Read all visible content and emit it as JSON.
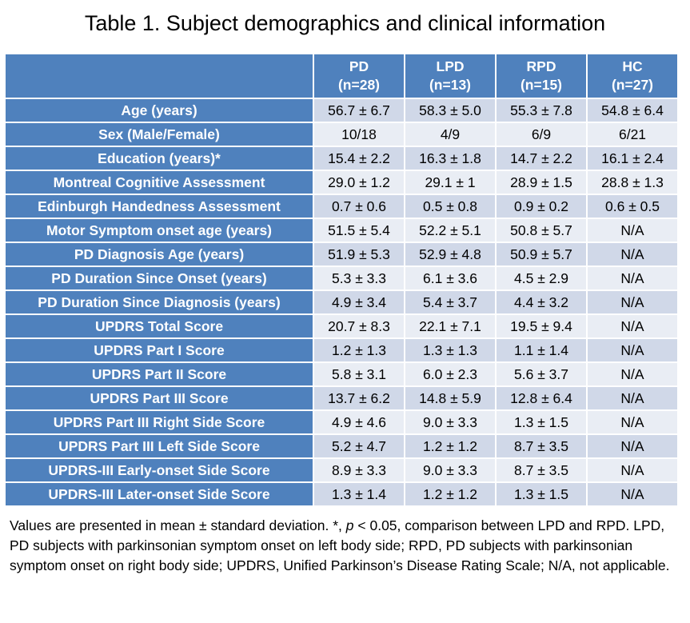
{
  "title": "Table 1. Subject demographics and clinical information",
  "table": {
    "headers": [
      {
        "name": "PD",
        "n": "(n=28)"
      },
      {
        "name": "LPD",
        "n": "(n=13)"
      },
      {
        "name": "RPD",
        "n": "(n=15)"
      },
      {
        "name": "HC",
        "n": "(n=27)"
      }
    ],
    "rows": [
      {
        "label": "Age (years)",
        "values": [
          "56.7 ± 6.7",
          "58.3 ± 5.0",
          "55.3 ± 7.8",
          "54.8 ± 6.4"
        ]
      },
      {
        "label": "Sex (Male/Female)",
        "values": [
          "10/18",
          "4/9",
          "6/9",
          "6/21"
        ]
      },
      {
        "label": "Education (years)*",
        "values": [
          "15.4 ± 2.2",
          "16.3 ± 1.8",
          "14.7 ± 2.2",
          "16.1 ± 2.4"
        ]
      },
      {
        "label": "Montreal Cognitive Assessment",
        "values": [
          "29.0 ± 1.2",
          "29.1 ± 1",
          "28.9 ± 1.5",
          "28.8 ± 1.3"
        ]
      },
      {
        "label": "Edinburgh Handedness Assessment",
        "values": [
          "0.7 ± 0.6",
          "0.5 ± 0.8",
          "0.9 ± 0.2",
          "0.6 ± 0.5"
        ]
      },
      {
        "label": "Motor Symptom onset age (years)",
        "values": [
          "51.5 ± 5.4",
          "52.2 ± 5.1",
          "50.8 ± 5.7",
          "N/A"
        ]
      },
      {
        "label": "PD Diagnosis Age (years)",
        "values": [
          "51.9 ± 5.3",
          "52.9 ± 4.8",
          "50.9 ± 5.7",
          "N/A"
        ]
      },
      {
        "label": "PD Duration Since Onset (years)",
        "values": [
          "5.3 ± 3.3",
          "6.1 ± 3.6",
          "4.5 ± 2.9",
          "N/A"
        ]
      },
      {
        "label": "PD Duration Since Diagnosis (years)",
        "values": [
          "4.9 ± 3.4",
          "5.4 ± 3.7",
          "4.4 ± 3.2",
          "N/A"
        ]
      },
      {
        "label": "UPDRS Total Score",
        "values": [
          "20.7 ± 8.3",
          "22.1 ± 7.1",
          "19.5 ± 9.4",
          "N/A"
        ]
      },
      {
        "label": "UPDRS Part I Score",
        "values": [
          "1.2 ± 1.3",
          "1.3 ± 1.3",
          "1.1 ± 1.4",
          "N/A"
        ]
      },
      {
        "label": "UPDRS Part II Score",
        "values": [
          "5.8 ± 3.1",
          "6.0 ± 2.3",
          "5.6 ± 3.7",
          "N/A"
        ]
      },
      {
        "label": "UPDRS Part III Score",
        "values": [
          "13.7 ± 6.2",
          "14.8 ± 5.9",
          "12.8 ± 6.4",
          "N/A"
        ]
      },
      {
        "label": "UPDRS Part III Right Side Score",
        "values": [
          "4.9 ± 4.6",
          "9.0 ± 3.3",
          "1.3 ± 1.5",
          "N/A"
        ]
      },
      {
        "label": "UPDRS Part III Left Side Score",
        "values": [
          "5.2 ± 4.7",
          "1.2 ± 1.2",
          "8.7 ± 3.5",
          "N/A"
        ]
      },
      {
        "label": "UPDRS-III Early-onset Side Score",
        "values": [
          "8.9 ± 3.3",
          "9.0 ± 3.3",
          "8.7 ± 3.5",
          "N/A"
        ]
      },
      {
        "label": "UPDRS-III Later-onset Side Score",
        "values": [
          "1.3 ± 1.4",
          "1.2 ± 1.2",
          "1.3 ± 1.5",
          "N/A"
        ]
      }
    ]
  },
  "footnote": {
    "text_1": "Values are presented in mean ± standard deviation. *, ",
    "p_italic": "p",
    "text_2": " < 0.05, comparison between LPD and RPD. LPD, PD subjects with parkinsonian symptom onset on left body side; RPD, PD subjects with parkinsonian symptom onset on right body side; UPDRS, Unified Parkinson’s Disease Rating Scale; N/A, not applicable."
  },
  "colors": {
    "header_blue": "#4f81bd",
    "row_light": "#d0d8e8",
    "row_lighter": "#e9edf4"
  }
}
